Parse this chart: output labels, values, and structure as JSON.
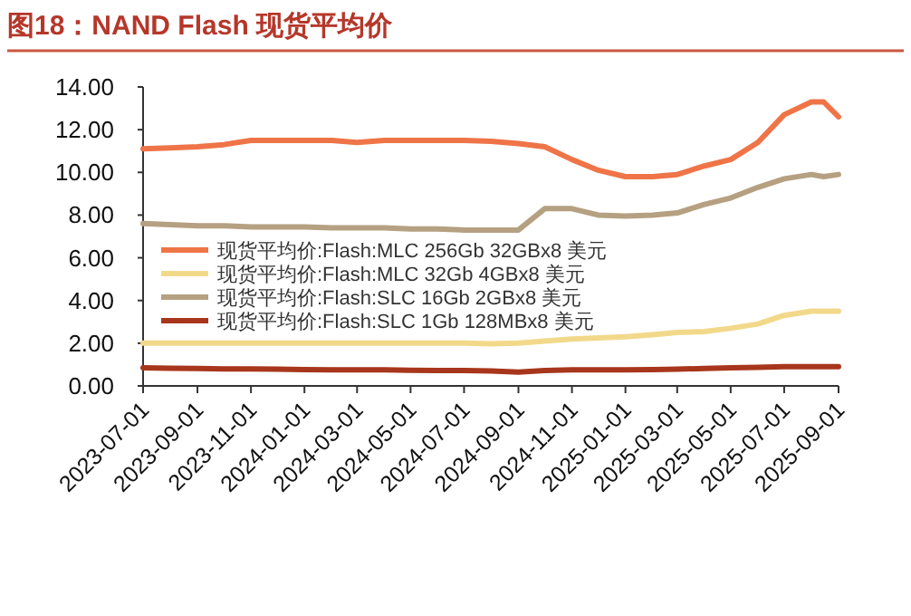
{
  "chart_data": {
    "type": "line",
    "title": "图18：NAND Flash 现货平均价",
    "x": [
      "2023-07-01",
      "2023-08-01",
      "2023-09-01",
      "2023-10-01",
      "2023-11-01",
      "2023-12-01",
      "2024-01-01",
      "2024-02-01",
      "2024-03-01",
      "2024-04-01",
      "2024-05-01",
      "2024-06-01",
      "2024-07-01",
      "2024-08-01",
      "2024-09-01",
      "2024-10-01",
      "2024-11-01",
      "2024-12-01",
      "2025-01-01",
      "2025-02-01",
      "2025-03-01",
      "2025-04-01",
      "2025-05-01",
      "2025-06-01",
      "2025-07-01",
      "2025-08-01",
      "2025-08-15",
      "2025-09-01"
    ],
    "series": [
      {
        "name": "现货平均价:Flash:MLC 256Gb 32GBx8 美元",
        "color": "#ef7447",
        "values": [
          11.1,
          11.15,
          11.2,
          11.3,
          11.5,
          11.5,
          11.5,
          11.5,
          11.4,
          11.5,
          11.5,
          11.5,
          11.5,
          11.45,
          11.35,
          11.2,
          10.6,
          10.1,
          9.8,
          9.8,
          9.9,
          10.3,
          10.6,
          11.4,
          12.7,
          13.3,
          13.3,
          12.6
        ]
      },
      {
        "name": "现货平均价:Flash:MLC 32Gb 4GBx8 美元",
        "color": "#f2d98a",
        "values": [
          2.0,
          2.0,
          2.0,
          2.0,
          2.0,
          2.0,
          2.0,
          2.0,
          2.0,
          2.0,
          2.0,
          2.0,
          2.0,
          1.97,
          2.0,
          2.1,
          2.2,
          2.25,
          2.3,
          2.4,
          2.5,
          2.55,
          2.7,
          2.9,
          3.3,
          3.5,
          3.5,
          3.5
        ]
      },
      {
        "name": "现货平均价:Flash:SLC 16Gb 2GBx8 美元",
        "color": "#b5a081",
        "values": [
          7.6,
          7.55,
          7.5,
          7.5,
          7.45,
          7.45,
          7.45,
          7.4,
          7.4,
          7.4,
          7.35,
          7.35,
          7.3,
          7.3,
          7.3,
          8.3,
          8.3,
          8.0,
          7.95,
          8.0,
          8.1,
          8.5,
          8.8,
          9.3,
          9.7,
          9.9,
          9.8,
          9.9
        ]
      },
      {
        "name": "现货平均价:Flash:SLC 1Gb 128MBx8 美元",
        "color": "#a8361c",
        "values": [
          0.85,
          0.83,
          0.82,
          0.8,
          0.8,
          0.78,
          0.76,
          0.75,
          0.75,
          0.75,
          0.73,
          0.72,
          0.72,
          0.7,
          0.65,
          0.72,
          0.75,
          0.75,
          0.75,
          0.76,
          0.78,
          0.82,
          0.85,
          0.87,
          0.9,
          0.9,
          0.9,
          0.9
        ]
      }
    ],
    "xlim": [
      "2023-07-01",
      "2025-09-01"
    ],
    "xticks": [
      "2023-07-01",
      "2023-09-01",
      "2023-11-01",
      "2024-01-01",
      "2024-03-01",
      "2024-05-01",
      "2024-07-01",
      "2024-09-01",
      "2024-11-01",
      "2025-01-01",
      "2025-03-01",
      "2025-05-01",
      "2025-07-01",
      "2025-09-01"
    ],
    "ylim": [
      0,
      14
    ],
    "yticks": [
      {
        "value": 0,
        "label": "0.00"
      },
      {
        "value": 2,
        "label": "2.00"
      },
      {
        "value": 4,
        "label": "4.00"
      },
      {
        "value": 6,
        "label": "6.00"
      },
      {
        "value": 8,
        "label": "8.00"
      },
      {
        "value": 10,
        "label": "10.00"
      },
      {
        "value": 12,
        "label": "12.00"
      },
      {
        "value": 14,
        "label": "14.00"
      }
    ],
    "grid": false,
    "legend": "left"
  }
}
